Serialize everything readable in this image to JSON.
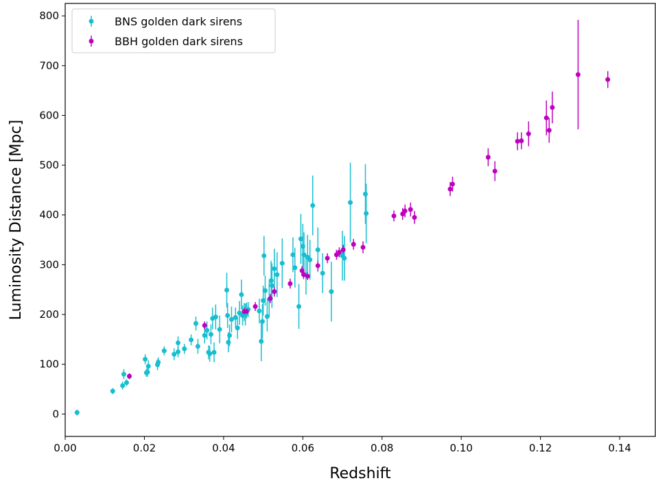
{
  "chart_data": {
    "type": "scatter",
    "xlabel": "Redshift",
    "ylabel": "Luminosity Distance [Mpc]",
    "xlim": [
      0.0,
      0.149
    ],
    "ylim": [
      -45,
      825
    ],
    "x_ticks": [
      "0.00",
      "0.02",
      "0.04",
      "0.06",
      "0.08",
      "0.10",
      "0.12",
      "0.14"
    ],
    "y_ticks": [
      "0",
      "100",
      "200",
      "300",
      "400",
      "500",
      "600",
      "700",
      "800"
    ],
    "legend_position": "top-left",
    "series": [
      {
        "name": "BNS golden dark sirens",
        "color": "#17becf",
        "points": [
          [
            0.003,
            3,
            6
          ],
          [
            0.012,
            46,
            6
          ],
          [
            0.0145,
            57,
            8
          ],
          [
            0.0148,
            80,
            10
          ],
          [
            0.0155,
            63,
            7
          ],
          [
            0.0202,
            110,
            10
          ],
          [
            0.0205,
            83,
            8
          ],
          [
            0.0208,
            84,
            9
          ],
          [
            0.021,
            96,
            12
          ],
          [
            0.0233,
            99,
            11
          ],
          [
            0.0235,
            104,
            10
          ],
          [
            0.025,
            127,
            9
          ],
          [
            0.0275,
            120,
            12
          ],
          [
            0.0285,
            125,
            11
          ],
          [
            0.0285,
            143,
            13
          ],
          [
            0.0301,
            131,
            10
          ],
          [
            0.0318,
            149,
            11
          ],
          [
            0.033,
            182,
            14
          ],
          [
            0.0335,
            136,
            15
          ],
          [
            0.0352,
            158,
            16
          ],
          [
            0.0358,
            168,
            18
          ],
          [
            0.0362,
            124,
            14
          ],
          [
            0.0365,
            121,
            16
          ],
          [
            0.0368,
            160,
            20
          ],
          [
            0.0372,
            192,
            22
          ],
          [
            0.0376,
            124,
            20
          ],
          [
            0.038,
            195,
            25
          ],
          [
            0.039,
            170,
            28
          ],
          [
            0.0408,
            249,
            35
          ],
          [
            0.041,
            198,
            25
          ],
          [
            0.0412,
            144,
            20
          ],
          [
            0.0415,
            158,
            22
          ],
          [
            0.042,
            190,
            26
          ],
          [
            0.043,
            194,
            20
          ],
          [
            0.0435,
            173,
            22
          ],
          [
            0.044,
            203,
            24
          ],
          [
            0.0445,
            240,
            30
          ],
          [
            0.0448,
            198,
            20
          ],
          [
            0.0452,
            205,
            18
          ],
          [
            0.0455,
            200,
            22
          ],
          [
            0.0458,
            208,
            16
          ],
          [
            0.0462,
            210,
            15
          ],
          [
            0.049,
            207,
            25
          ],
          [
            0.0495,
            146,
            40
          ],
          [
            0.0498,
            186,
            35
          ],
          [
            0.05,
            228,
            30
          ],
          [
            0.0502,
            318,
            40
          ],
          [
            0.0505,
            248,
            30
          ],
          [
            0.051,
            196,
            30
          ],
          [
            0.0515,
            230,
            35
          ],
          [
            0.052,
            268,
            40
          ],
          [
            0.0522,
            258,
            45
          ],
          [
            0.0528,
            292,
            40
          ],
          [
            0.0535,
            280,
            45
          ],
          [
            0.0548,
            303,
            50
          ],
          [
            0.0575,
            320,
            35
          ],
          [
            0.058,
            294,
            40
          ],
          [
            0.059,
            216,
            45
          ],
          [
            0.0595,
            352,
            50
          ],
          [
            0.06,
            337,
            45
          ],
          [
            0.0603,
            320,
            45
          ],
          [
            0.0608,
            280,
            40
          ],
          [
            0.0612,
            315,
            45
          ],
          [
            0.0618,
            310,
            40
          ],
          [
            0.0625,
            419,
            60
          ],
          [
            0.0638,
            330,
            45
          ],
          [
            0.065,
            283,
            40
          ],
          [
            0.0672,
            246,
            60
          ],
          [
            0.07,
            318,
            50
          ],
          [
            0.0705,
            313,
            45
          ],
          [
            0.072,
            425,
            80
          ],
          [
            0.0758,
            442,
            60
          ],
          [
            0.076,
            403,
            60
          ]
        ]
      },
      {
        "name": "BBH golden dark sirens",
        "color": "#bf00bf",
        "points": [
          [
            0.0162,
            76,
            6
          ],
          [
            0.0352,
            178,
            8
          ],
          [
            0.0452,
            206,
            8
          ],
          [
            0.0458,
            206,
            7
          ],
          [
            0.048,
            216,
            9
          ],
          [
            0.0518,
            232,
            9
          ],
          [
            0.0528,
            246,
            10
          ],
          [
            0.0568,
            262,
            10
          ],
          [
            0.0598,
            288,
            9
          ],
          [
            0.0602,
            280,
            9
          ],
          [
            0.0612,
            277,
            8
          ],
          [
            0.0638,
            298,
            10
          ],
          [
            0.0662,
            313,
            10
          ],
          [
            0.0685,
            320,
            10
          ],
          [
            0.0692,
            325,
            10
          ],
          [
            0.0702,
            330,
            10
          ],
          [
            0.0728,
            341,
            11
          ],
          [
            0.0752,
            335,
            12
          ],
          [
            0.083,
            398,
            11
          ],
          [
            0.0852,
            402,
            12
          ],
          [
            0.0858,
            408,
            13
          ],
          [
            0.0872,
            411,
            14
          ],
          [
            0.0882,
            395,
            13
          ],
          [
            0.0972,
            452,
            14
          ],
          [
            0.0978,
            462,
            15
          ],
          [
            0.1068,
            516,
            18
          ],
          [
            0.1085,
            488,
            20
          ],
          [
            0.1142,
            548,
            18
          ],
          [
            0.1152,
            549,
            17
          ],
          [
            0.117,
            563,
            25
          ],
          [
            0.1215,
            595,
            35
          ],
          [
            0.1222,
            570,
            25
          ],
          [
            0.123,
            616,
            32
          ],
          [
            0.1295,
            682,
            110
          ],
          [
            0.137,
            672,
            17
          ]
        ]
      }
    ]
  }
}
